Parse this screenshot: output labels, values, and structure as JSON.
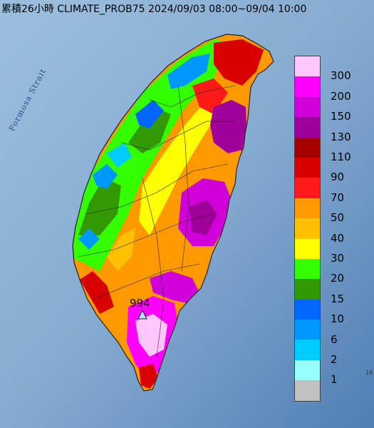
{
  "title": "累積26小時 CLIMATE_PROB75 2024/09/03 08:00~09/04 10:00",
  "strait_label": "Formosa Strait",
  "max_value_label": "994",
  "corner_fragment": "18",
  "legend": {
    "labels": [
      "300",
      "200",
      "150",
      "130",
      "110",
      "90",
      "70",
      "50",
      "40",
      "30",
      "20",
      "15",
      "10",
      "6",
      "2",
      "1"
    ],
    "colors": [
      "#ffc6fe",
      "#ff00ff",
      "#d100d9",
      "#9e0099",
      "#a50000",
      "#d90000",
      "#ff1a1a",
      "#ff9900",
      "#ffc000",
      "#ffff00",
      "#33ff00",
      "#339900",
      "#0066ff",
      "#0099ff",
      "#00ccff",
      "#99ffff",
      "#c0c0c0"
    ]
  }
}
